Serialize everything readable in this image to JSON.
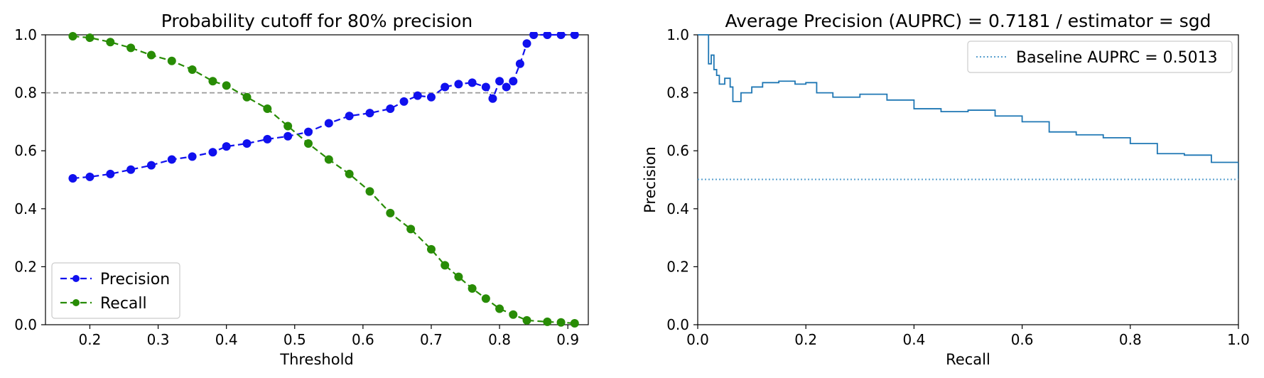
{
  "chart_data": [
    {
      "type": "line",
      "title": "Probability cutoff for 80% precision",
      "xlabel": "Threshold",
      "ylabel": "",
      "xlim": [
        0.135,
        0.93
      ],
      "ylim": [
        0.0,
        1.0
      ],
      "xticks": [
        "0.2",
        "0.3",
        "0.4",
        "0.5",
        "0.6",
        "0.7",
        "0.8",
        "0.9"
      ],
      "xtick_values": [
        0.2,
        0.3,
        0.4,
        0.5,
        0.6,
        0.7,
        0.8,
        0.9
      ],
      "yticks": [
        "0.0",
        "0.2",
        "0.4",
        "0.6",
        "0.8",
        "1.0"
      ],
      "ytick_values": [
        0.0,
        0.2,
        0.4,
        0.6,
        0.8,
        1.0
      ],
      "legend_position": "lower-left",
      "reference_line": {
        "y": 0.8,
        "style": "dashed",
        "color": "#999999"
      },
      "series": [
        {
          "name": "Precision",
          "color": "#1010ee",
          "x": [
            0.175,
            0.2,
            0.23,
            0.26,
            0.29,
            0.32,
            0.35,
            0.38,
            0.4,
            0.43,
            0.46,
            0.49,
            0.52,
            0.55,
            0.58,
            0.61,
            0.64,
            0.66,
            0.68,
            0.7,
            0.72,
            0.74,
            0.76,
            0.78,
            0.79,
            0.8,
            0.81,
            0.82,
            0.83,
            0.84,
            0.85,
            0.87,
            0.89,
            0.91
          ],
          "y": [
            0.505,
            0.51,
            0.52,
            0.535,
            0.55,
            0.57,
            0.58,
            0.595,
            0.615,
            0.625,
            0.64,
            0.65,
            0.665,
            0.695,
            0.72,
            0.73,
            0.745,
            0.77,
            0.79,
            0.785,
            0.82,
            0.83,
            0.835,
            0.82,
            0.78,
            0.84,
            0.82,
            0.84,
            0.9,
            0.97,
            1.0,
            1.0,
            1.0,
            1.0
          ]
        },
        {
          "name": "Recall",
          "color": "#288c05",
          "x": [
            0.175,
            0.2,
            0.23,
            0.26,
            0.29,
            0.32,
            0.35,
            0.38,
            0.4,
            0.43,
            0.46,
            0.49,
            0.52,
            0.55,
            0.58,
            0.61,
            0.64,
            0.67,
            0.7,
            0.72,
            0.74,
            0.76,
            0.78,
            0.8,
            0.82,
            0.84,
            0.87,
            0.89,
            0.91
          ],
          "y": [
            0.995,
            0.99,
            0.975,
            0.955,
            0.93,
            0.91,
            0.88,
            0.84,
            0.825,
            0.785,
            0.745,
            0.685,
            0.625,
            0.57,
            0.52,
            0.46,
            0.385,
            0.33,
            0.26,
            0.205,
            0.165,
            0.125,
            0.09,
            0.055,
            0.035,
            0.015,
            0.01,
            0.008,
            0.005
          ]
        }
      ]
    },
    {
      "type": "line",
      "title": "Average Precision (AUPRC) = 0.7181 / estimator = sgd",
      "xlabel": "Recall",
      "ylabel": "Precision",
      "xlim": [
        0.0,
        1.0
      ],
      "ylim": [
        0.0,
        1.0
      ],
      "xticks": [
        "0.0",
        "0.2",
        "0.4",
        "0.6",
        "0.8",
        "1.0"
      ],
      "xtick_values": [
        0.0,
        0.2,
        0.4,
        0.6,
        0.8,
        1.0
      ],
      "yticks": [
        "0.0",
        "0.2",
        "0.4",
        "0.6",
        "0.8",
        "1.0"
      ],
      "ytick_values": [
        0.0,
        0.2,
        0.4,
        0.6,
        0.8,
        1.0
      ],
      "legend_position": "top-right",
      "series": [
        {
          "name": "",
          "color": "#1f77b4",
          "style": "steps",
          "x": [
            0.0,
            0.018,
            0.02,
            0.025,
            0.03,
            0.035,
            0.04,
            0.05,
            0.06,
            0.065,
            0.08,
            0.1,
            0.12,
            0.15,
            0.18,
            0.2,
            0.22,
            0.25,
            0.3,
            0.35,
            0.4,
            0.45,
            0.5,
            0.55,
            0.6,
            0.65,
            0.7,
            0.75,
            0.8,
            0.85,
            0.9,
            0.95,
            1.0
          ],
          "y": [
            1.0,
            1.0,
            0.9,
            0.93,
            0.88,
            0.86,
            0.83,
            0.85,
            0.82,
            0.77,
            0.8,
            0.82,
            0.835,
            0.84,
            0.83,
            0.835,
            0.8,
            0.785,
            0.795,
            0.775,
            0.745,
            0.735,
            0.74,
            0.72,
            0.7,
            0.665,
            0.655,
            0.645,
            0.625,
            0.59,
            0.585,
            0.56,
            0.505
          ]
        },
        {
          "name": "Baseline AUPRC = 0.5013",
          "color": "#5aa0cf",
          "style": "dotted",
          "x": [
            0.0,
            1.0
          ],
          "y": [
            0.5013,
            0.5013
          ]
        }
      ]
    }
  ]
}
